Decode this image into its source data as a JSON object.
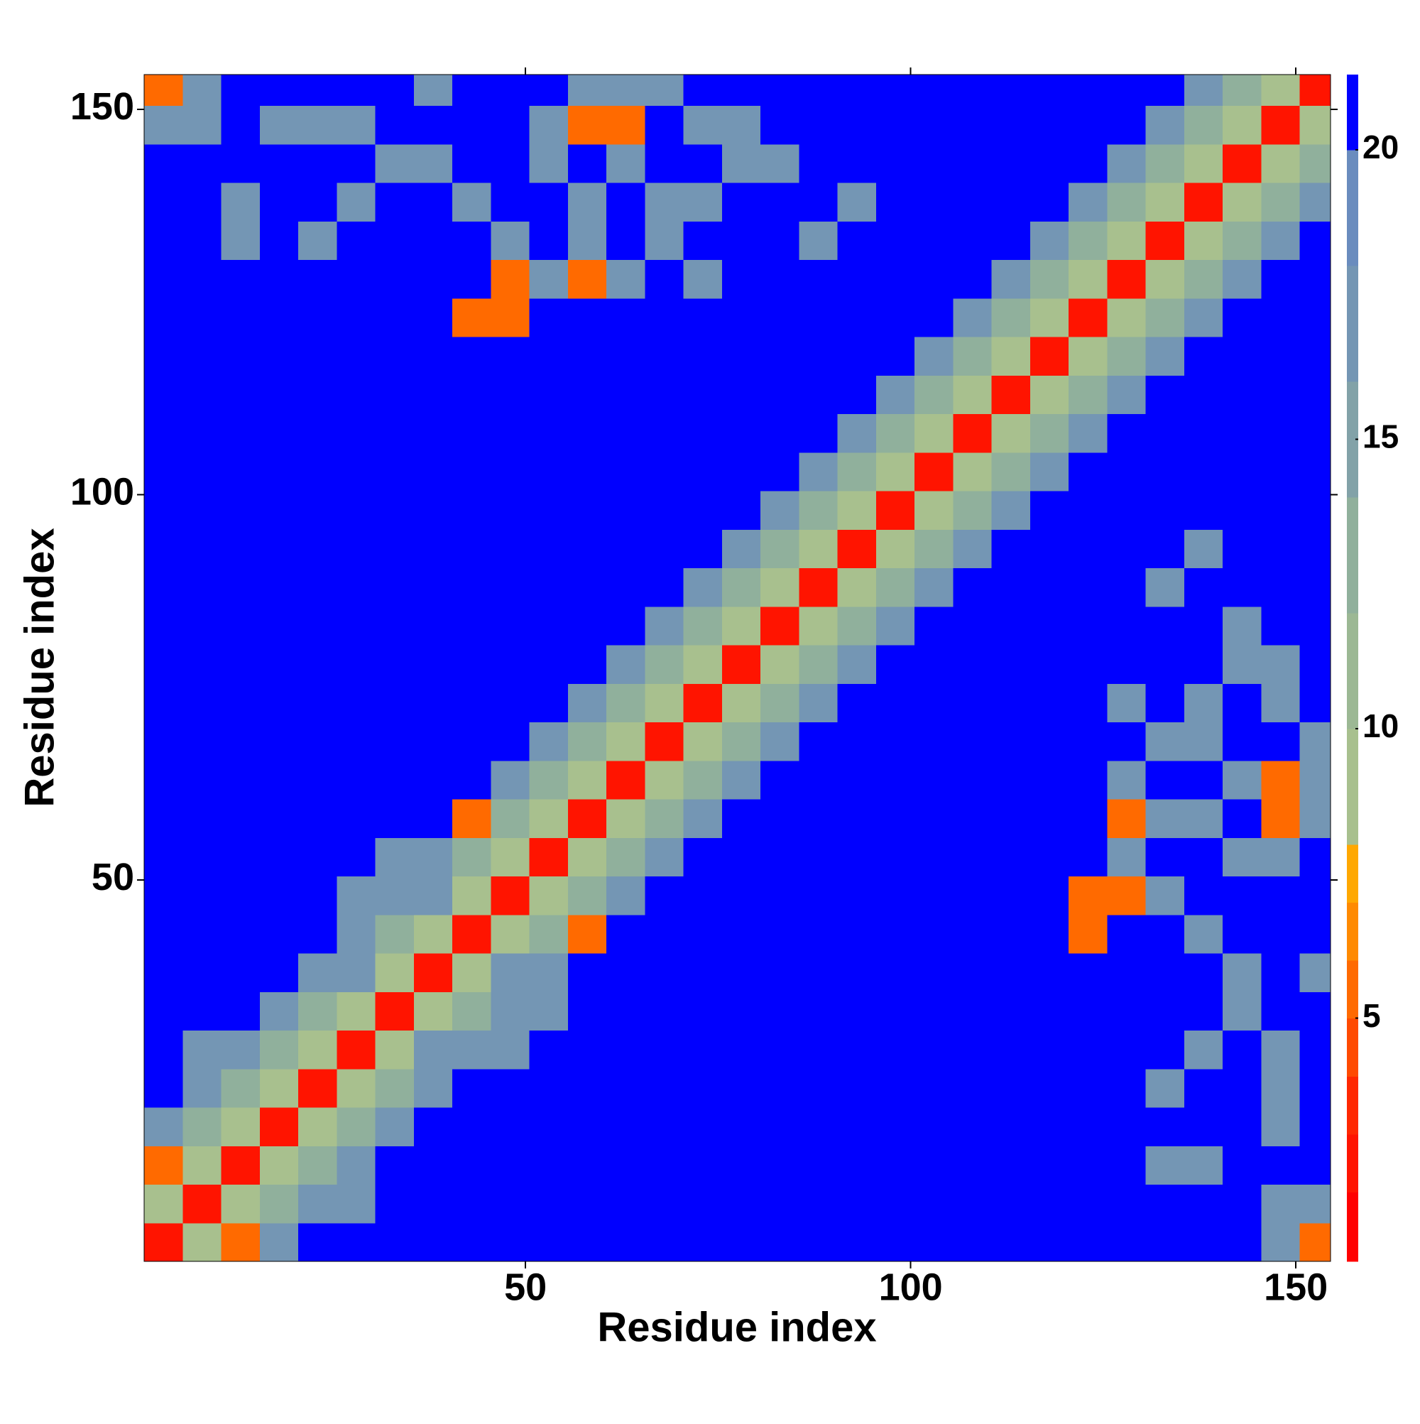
{
  "chart_data": {
    "type": "heatmap",
    "x_label": "Residue index",
    "y_label": "Residue index",
    "xlim": [
      0.5,
      154.5
    ],
    "ylim": [
      0.5,
      154.5
    ],
    "xticks": [
      50,
      100,
      150
    ],
    "yticks": [
      50,
      100,
      150
    ],
    "x_edges": [
      0.5,
      5.5,
      10.5,
      15.5,
      20.5,
      25.5,
      30.5,
      35.5,
      40.5,
      45.5,
      50.5,
      55.5,
      60.5,
      65.5,
      70.5,
      75.5,
      80.5,
      85.5,
      90.5,
      95.5,
      100.5,
      105.5,
      110.5,
      115.5,
      120.5,
      125.5,
      130.5,
      135.5,
      140.5,
      145.5,
      150.5,
      154.5
    ],
    "y_edges": [
      0.5,
      5.5,
      10.5,
      15.5,
      20.5,
      25.5,
      30.5,
      35.5,
      40.5,
      45.5,
      50.5,
      55.5,
      60.5,
      65.5,
      70.5,
      75.5,
      80.5,
      85.5,
      90.5,
      95.5,
      100.5,
      105.5,
      110.5,
      115.5,
      120.5,
      125.5,
      130.5,
      135.5,
      140.5,
      145.5,
      150.5,
      154.5
    ],
    "colorbar": {
      "ticks": [
        5,
        10,
        15,
        20
      ],
      "levels": [
        {
          "from": 0.8,
          "to": 2,
          "color": "#ff0000"
        },
        {
          "from": 2,
          "to": 3,
          "color": "#ff1400"
        },
        {
          "from": 3,
          "to": 4,
          "color": "#ff2800"
        },
        {
          "from": 4,
          "to": 5,
          "color": "#ff4a00"
        },
        {
          "from": 5,
          "to": 6,
          "color": "#ff6a00"
        },
        {
          "from": 6,
          "to": 7,
          "color": "#ff8a00"
        },
        {
          "from": 7,
          "to": 8,
          "color": "#ffa800"
        },
        {
          "from": 8,
          "to": 10,
          "color": "#a8c08e"
        },
        {
          "from": 10,
          "to": 12,
          "color": "#9cb894"
        },
        {
          "from": 12,
          "to": 14,
          "color": "#90b09c"
        },
        {
          "from": 14,
          "to": 16,
          "color": "#82a2a8"
        },
        {
          "from": 16,
          "to": 18,
          "color": "#7496b4"
        },
        {
          "from": 18,
          "to": 20,
          "color": "#6a8cbe"
        },
        {
          "from": 20,
          "to": 21.3,
          "color": "#0000ff"
        }
      ]
    },
    "values": [
      [
        3,
        9,
        6,
        17,
        21,
        21,
        21,
        21,
        21,
        21,
        21,
        21,
        21,
        21,
        21,
        21,
        21,
        21,
        21,
        21,
        21,
        21,
        21,
        21,
        21,
        21,
        21,
        21,
        21,
        17,
        6
      ],
      [
        9,
        3,
        9,
        13,
        17,
        17,
        21,
        21,
        21,
        21,
        21,
        21,
        21,
        21,
        21,
        21,
        21,
        21,
        21,
        21,
        21,
        21,
        21,
        21,
        21,
        21,
        21,
        21,
        21,
        17,
        17
      ],
      [
        6,
        9,
        3,
        9,
        13,
        18,
        21,
        21,
        21,
        21,
        21,
        21,
        21,
        21,
        21,
        21,
        21,
        21,
        21,
        21,
        21,
        21,
        21,
        21,
        21,
        21,
        17,
        17,
        21,
        21,
        21
      ],
      [
        17,
        13,
        9,
        3,
        9,
        13,
        17,
        21,
        21,
        21,
        21,
        21,
        21,
        21,
        21,
        21,
        21,
        21,
        21,
        21,
        21,
        21,
        21,
        21,
        21,
        21,
        21,
        21,
        21,
        17,
        21
      ],
      [
        21,
        17,
        13,
        9,
        3,
        9,
        13,
        17,
        21,
        21,
        21,
        21,
        21,
        21,
        21,
        21,
        21,
        21,
        21,
        21,
        21,
        21,
        21,
        21,
        21,
        21,
        17,
        21,
        21,
        17,
        21
      ],
      [
        21,
        17,
        18,
        13,
        9,
        3,
        9,
        17,
        18,
        17,
        21,
        21,
        21,
        21,
        21,
        21,
        21,
        21,
        21,
        21,
        21,
        21,
        21,
        21,
        21,
        21,
        21,
        17,
        21,
        17,
        21
      ],
      [
        21,
        21,
        21,
        17,
        13,
        9,
        3,
        9,
        13,
        17,
        17,
        21,
        21,
        21,
        21,
        21,
        21,
        21,
        21,
        21,
        21,
        21,
        21,
        21,
        21,
        21,
        21,
        21,
        17,
        21,
        21
      ],
      [
        21,
        21,
        21,
        21,
        17,
        17,
        9,
        3,
        9,
        17,
        17,
        21,
        21,
        21,
        21,
        21,
        21,
        21,
        21,
        21,
        21,
        21,
        21,
        21,
        21,
        21,
        21,
        21,
        17,
        21,
        17
      ],
      [
        21,
        21,
        21,
        21,
        21,
        18,
        13,
        9,
        3,
        9,
        13,
        6,
        21,
        21,
        21,
        21,
        21,
        21,
        21,
        21,
        21,
        21,
        21,
        21,
        6,
        21,
        21,
        17,
        21,
        21,
        21
      ],
      [
        21,
        21,
        21,
        21,
        21,
        17,
        17,
        17,
        9,
        3,
        9,
        13,
        18,
        21,
        21,
        21,
        21,
        21,
        21,
        21,
        21,
        21,
        21,
        21,
        6,
        6,
        17,
        21,
        21,
        21,
        21
      ],
      [
        21,
        21,
        21,
        21,
        21,
        21,
        17,
        17,
        13,
        9,
        3,
        9,
        13,
        18,
        21,
        21,
        21,
        21,
        21,
        21,
        21,
        21,
        21,
        21,
        21,
        17,
        21,
        21,
        17,
        17,
        21
      ],
      [
        21,
        21,
        21,
        21,
        21,
        21,
        21,
        21,
        6,
        13,
        9,
        3,
        9,
        13,
        18,
        21,
        21,
        21,
        21,
        21,
        21,
        21,
        21,
        21,
        21,
        6,
        17,
        17,
        21,
        6,
        17
      ],
      [
        21,
        21,
        21,
        21,
        21,
        21,
        21,
        21,
        21,
        18,
        13,
        9,
        3,
        9,
        13,
        18,
        21,
        21,
        21,
        21,
        21,
        21,
        21,
        21,
        21,
        17,
        21,
        21,
        17,
        6,
        17
      ],
      [
        21,
        21,
        21,
        21,
        21,
        21,
        21,
        21,
        21,
        21,
        18,
        13,
        9,
        3,
        9,
        13,
        18,
        21,
        21,
        21,
        21,
        21,
        21,
        21,
        21,
        21,
        17,
        17,
        21,
        21,
        17
      ],
      [
        21,
        21,
        21,
        21,
        21,
        21,
        21,
        21,
        21,
        21,
        21,
        18,
        13,
        9,
        3,
        9,
        13,
        18,
        21,
        21,
        21,
        21,
        21,
        21,
        21,
        17,
        21,
        17,
        21,
        17,
        21
      ],
      [
        21,
        21,
        21,
        21,
        21,
        21,
        21,
        21,
        21,
        21,
        21,
        21,
        18,
        13,
        9,
        3,
        9,
        13,
        18,
        21,
        21,
        21,
        21,
        21,
        21,
        21,
        21,
        21,
        17,
        17,
        21
      ],
      [
        21,
        21,
        21,
        21,
        21,
        21,
        21,
        21,
        21,
        21,
        21,
        21,
        21,
        18,
        13,
        9,
        3,
        9,
        13,
        18,
        21,
        21,
        21,
        21,
        21,
        21,
        21,
        21,
        17,
        21,
        21
      ],
      [
        21,
        21,
        21,
        21,
        21,
        21,
        21,
        21,
        21,
        21,
        21,
        21,
        21,
        21,
        18,
        13,
        9,
        3,
        9,
        13,
        18,
        21,
        21,
        21,
        21,
        21,
        17,
        21,
        21,
        21,
        21
      ],
      [
        21,
        21,
        21,
        21,
        21,
        21,
        21,
        21,
        21,
        21,
        21,
        21,
        21,
        21,
        21,
        18,
        13,
        9,
        3,
        9,
        13,
        18,
        21,
        21,
        21,
        21,
        21,
        17,
        21,
        21,
        21
      ],
      [
        21,
        21,
        21,
        21,
        21,
        21,
        21,
        21,
        21,
        21,
        21,
        21,
        21,
        21,
        21,
        21,
        18,
        13,
        9,
        3,
        9,
        13,
        18,
        21,
        21,
        21,
        21,
        21,
        21,
        21,
        21
      ],
      [
        21,
        21,
        21,
        21,
        21,
        21,
        21,
        21,
        21,
        21,
        21,
        21,
        21,
        21,
        21,
        21,
        21,
        18,
        13,
        9,
        3,
        9,
        13,
        18,
        21,
        21,
        21,
        21,
        21,
        21,
        21
      ],
      [
        21,
        21,
        21,
        21,
        21,
        21,
        21,
        21,
        21,
        21,
        21,
        21,
        21,
        21,
        21,
        21,
        21,
        21,
        18,
        13,
        9,
        3,
        9,
        13,
        18,
        21,
        21,
        21,
        21,
        21,
        21
      ],
      [
        21,
        21,
        21,
        21,
        21,
        21,
        21,
        21,
        21,
        21,
        21,
        21,
        21,
        21,
        21,
        21,
        21,
        21,
        21,
        18,
        13,
        9,
        3,
        9,
        13,
        18,
        21,
        21,
        21,
        21,
        21
      ],
      [
        21,
        21,
        21,
        21,
        21,
        21,
        21,
        21,
        21,
        21,
        21,
        21,
        21,
        21,
        21,
        21,
        21,
        21,
        21,
        21,
        18,
        13,
        9,
        3,
        9,
        13,
        18,
        21,
        21,
        21,
        21
      ],
      [
        21,
        21,
        21,
        21,
        21,
        21,
        21,
        21,
        6,
        6,
        21,
        21,
        21,
        21,
        21,
        21,
        21,
        21,
        21,
        21,
        21,
        18,
        13,
        9,
        3,
        9,
        13,
        18,
        21,
        21,
        21
      ],
      [
        21,
        21,
        21,
        21,
        21,
        21,
        21,
        21,
        21,
        6,
        17,
        6,
        17,
        21,
        17,
        21,
        21,
        21,
        21,
        21,
        21,
        21,
        18,
        13,
        9,
        3,
        9,
        13,
        18,
        21,
        21
      ],
      [
        21,
        21,
        17,
        21,
        17,
        21,
        21,
        21,
        21,
        17,
        21,
        17,
        21,
        17,
        21,
        21,
        21,
        17,
        21,
        21,
        21,
        21,
        21,
        18,
        13,
        9,
        3,
        9,
        13,
        18,
        21
      ],
      [
        21,
        21,
        17,
        21,
        21,
        17,
        21,
        21,
        17,
        21,
        21,
        17,
        21,
        17,
        17,
        21,
        21,
        21,
        17,
        21,
        21,
        21,
        21,
        21,
        18,
        13,
        9,
        3,
        9,
        13,
        18
      ],
      [
        21,
        21,
        21,
        21,
        21,
        21,
        17,
        17,
        21,
        21,
        17,
        21,
        17,
        21,
        21,
        17,
        17,
        21,
        21,
        21,
        21,
        21,
        21,
        21,
        21,
        18,
        13,
        9,
        3,
        9,
        13
      ],
      [
        17,
        17,
        21,
        17,
        17,
        17,
        21,
        21,
        21,
        21,
        17,
        6,
        6,
        21,
        17,
        17,
        21,
        21,
        21,
        21,
        21,
        21,
        21,
        21,
        21,
        21,
        18,
        13,
        9,
        3,
        9
      ],
      [
        6,
        17,
        21,
        21,
        21,
        21,
        21,
        17,
        21,
        21,
        21,
        17,
        17,
        17,
        21,
        21,
        21,
        21,
        21,
        21,
        21,
        21,
        21,
        21,
        21,
        21,
        21,
        18,
        13,
        9,
        3
      ]
    ]
  }
}
